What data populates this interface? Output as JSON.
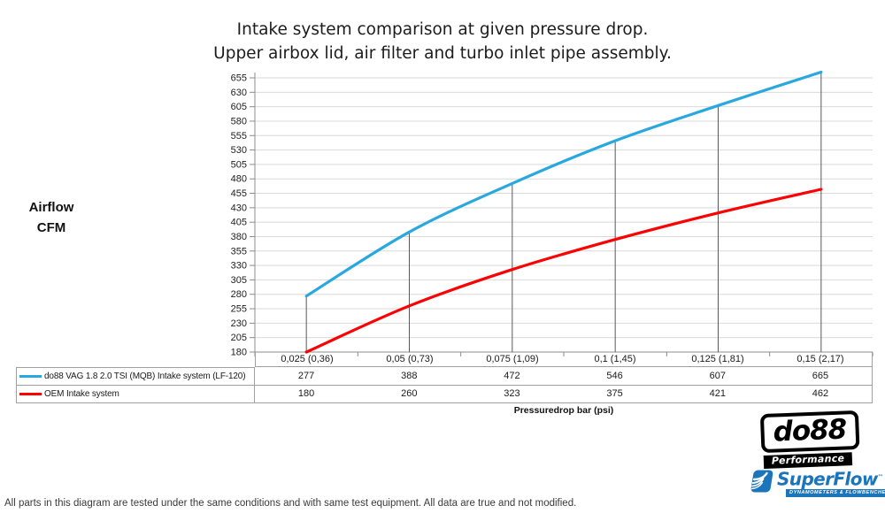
{
  "title": {
    "line1": "Intake system comparison at given pressure drop.",
    "line2": "Upper airbox lid, air filter and turbo inlet pipe assembly."
  },
  "y_axis": {
    "line1": "Airflow",
    "line2": "CFM"
  },
  "x_axis": {
    "label": "Pressuredrop bar (psi)"
  },
  "footer": "All parts in this diagram are tested under the same conditions and with same test equipment. All data are true and not modified.",
  "logos": {
    "do88": {
      "name": "do88",
      "subtitle": "Performance",
      "color": "#000000"
    },
    "superflow": {
      "name": "SuperFlow",
      "trademark": "™",
      "subtitle": "DYNAMOMETERS & FLOWBENCHES",
      "color": "#1b75bb"
    }
  },
  "chart_data": {
    "type": "line",
    "title": "Intake system comparison at given pressure drop. Upper airbox lid, air filter and turbo inlet pipe assembly.",
    "categories": [
      "0,025 (0,36)",
      "0,05 (0,73)",
      "0,075 (1,09)",
      "0,1 (1,45)",
      "0,125 (1,81)",
      "0,15 (2,17)"
    ],
    "series": [
      {
        "name": "do88 VAG 1.8 2.0 TSI (MQB) Intake system (LF-120)",
        "color": "#29a8e0",
        "values": [
          277,
          388,
          472,
          546,
          607,
          665
        ]
      },
      {
        "name": "OEM Intake system",
        "color": "#fe0000",
        "values": [
          180,
          260,
          323,
          375,
          421,
          462
        ]
      }
    ],
    "xlabel": "Pressuredrop bar (psi)",
    "ylabel": "Airflow CFM",
    "ylim": [
      180,
      655
    ],
    "ytick_step": 25,
    "grid": "horizontal",
    "legend_position": "table-left",
    "drop_lines": "first-series",
    "colors": {
      "grid": "#d9d9d9",
      "axis": "#8c8c8c",
      "drop_line": "#595959",
      "tick_text": "#212121"
    }
  }
}
